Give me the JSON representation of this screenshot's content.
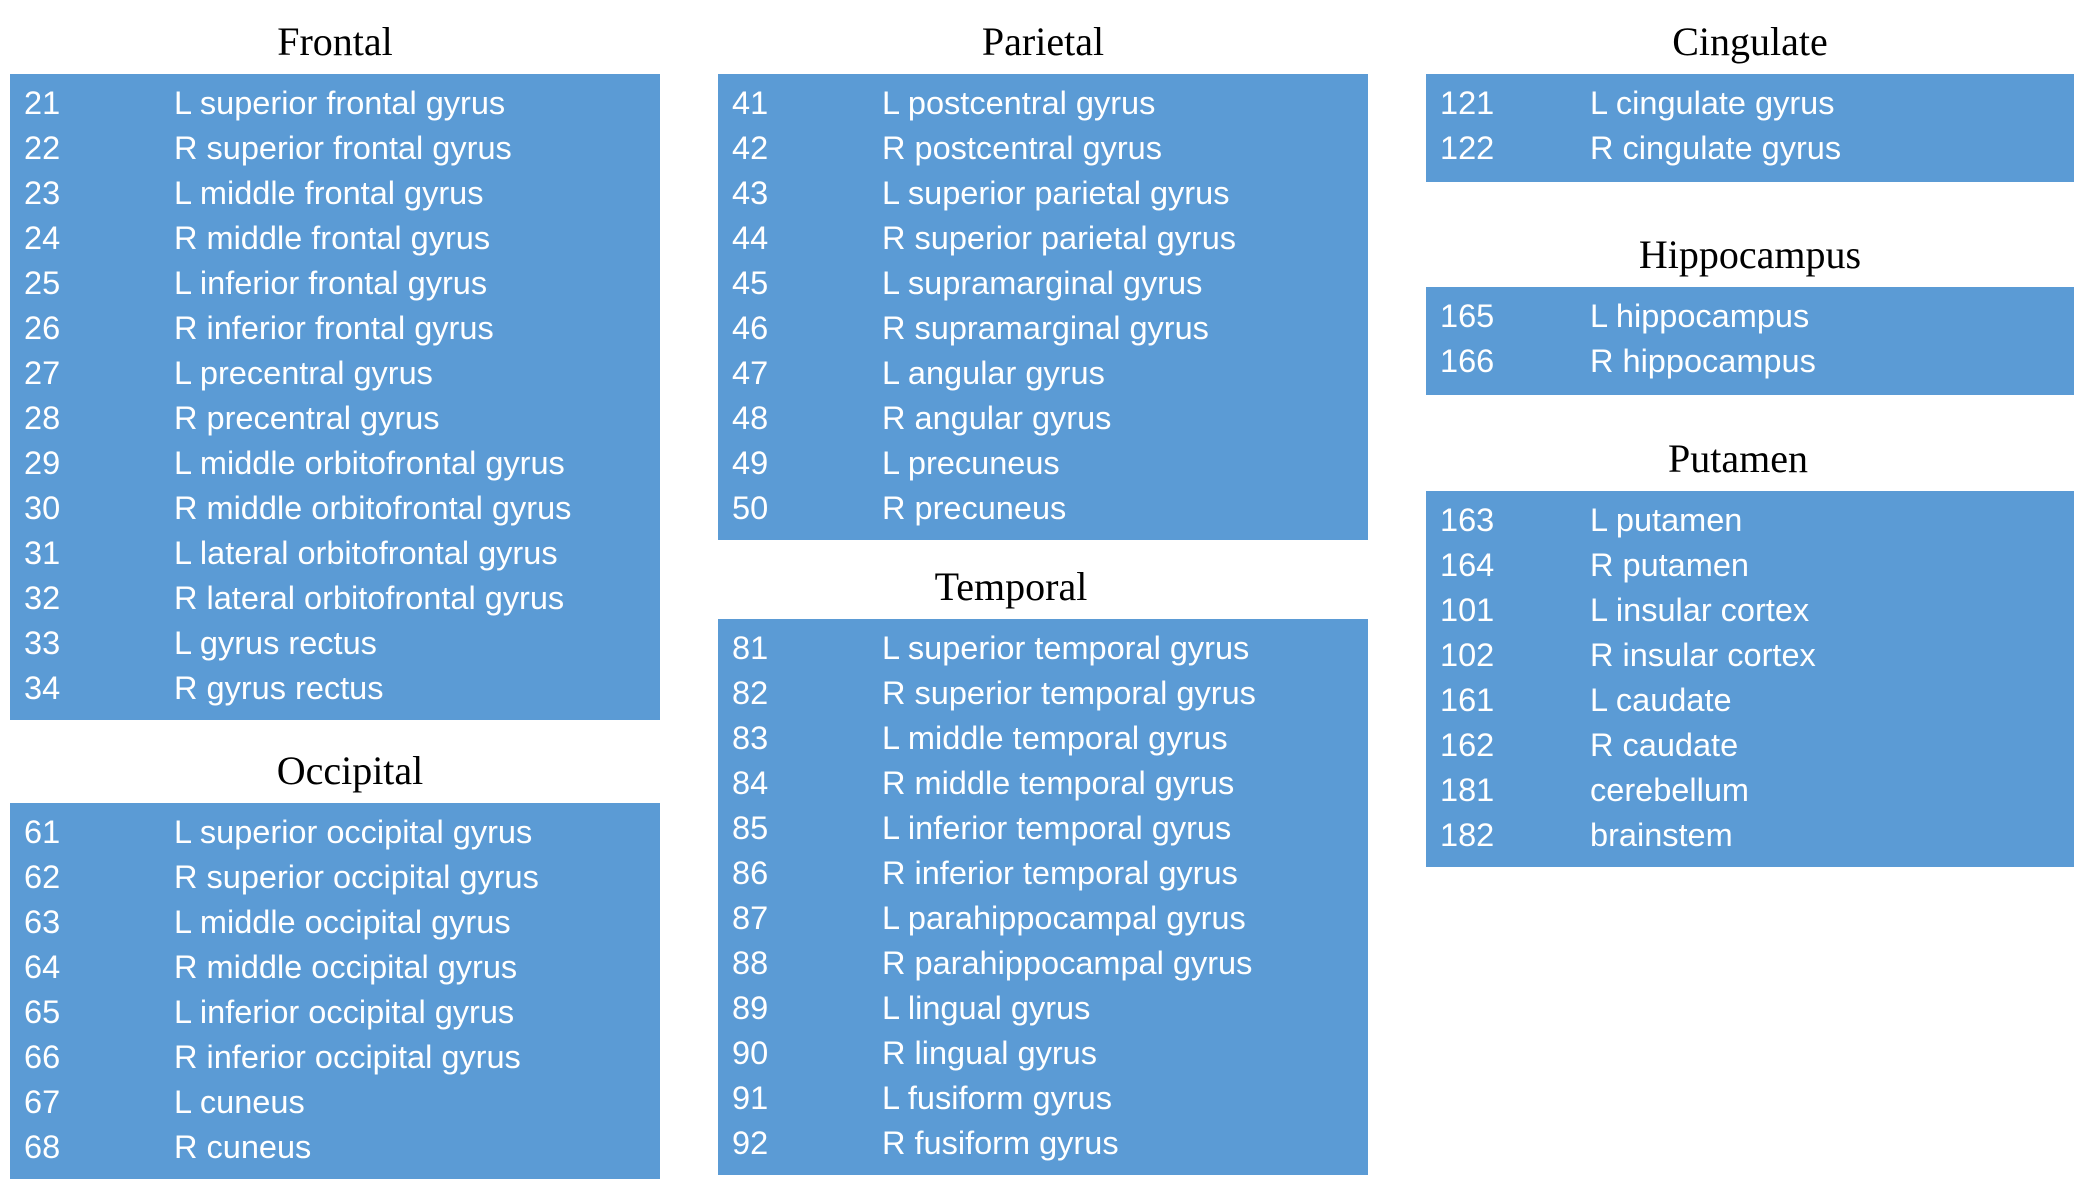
{
  "groups": [
    {
      "id": "frontal",
      "title": "Frontal",
      "rows": [
        {
          "code": "21",
          "name": "L superior frontal gyrus"
        },
        {
          "code": "22",
          "name": "R superior frontal gyrus"
        },
        {
          "code": "23",
          "name": "L middle frontal gyrus"
        },
        {
          "code": "24",
          "name": "R middle frontal gyrus"
        },
        {
          "code": "25",
          "name": "L inferior frontal gyrus"
        },
        {
          "code": "26",
          "name": "R inferior frontal gyrus"
        },
        {
          "code": "27",
          "name": "L precentral gyrus"
        },
        {
          "code": "28",
          "name": "R precentral gyrus"
        },
        {
          "code": "29",
          "name": "L middle orbitofrontal gyrus"
        },
        {
          "code": "30",
          "name": "R middle orbitofrontal gyrus"
        },
        {
          "code": "31",
          "name": "L lateral orbitofrontal gyrus"
        },
        {
          "code": "32",
          "name": "R lateral orbitofrontal gyrus"
        },
        {
          "code": "33",
          "name": "L gyrus rectus"
        },
        {
          "code": "34",
          "name": "R gyrus rectus"
        }
      ]
    },
    {
      "id": "occipital",
      "title": "Occipital",
      "rows": [
        {
          "code": "61",
          "name": "L superior occipital gyrus"
        },
        {
          "code": "62",
          "name": "R superior occipital gyrus"
        },
        {
          "code": "63",
          "name": "L middle occipital gyrus"
        },
        {
          "code": "64",
          "name": "R middle occipital gyrus"
        },
        {
          "code": "65",
          "name": "L inferior occipital gyrus"
        },
        {
          "code": "66",
          "name": "R inferior occipital gyrus"
        },
        {
          "code": "67",
          "name": "L cuneus"
        },
        {
          "code": "68",
          "name": "R cuneus"
        }
      ]
    },
    {
      "id": "parietal",
      "title": "Parietal",
      "rows": [
        {
          "code": "41",
          "name": "L postcentral gyrus"
        },
        {
          "code": "42",
          "name": "R postcentral gyrus"
        },
        {
          "code": "43",
          "name": "L superior parietal gyrus"
        },
        {
          "code": "44",
          "name": "R superior parietal gyrus"
        },
        {
          "code": "45",
          "name": "L supramarginal gyrus"
        },
        {
          "code": "46",
          "name": "R supramarginal gyrus"
        },
        {
          "code": "47",
          "name": "L angular gyrus"
        },
        {
          "code": "48",
          "name": "R angular gyrus"
        },
        {
          "code": "49",
          "name": "L precuneus"
        },
        {
          "code": "50",
          "name": "R precuneus"
        }
      ]
    },
    {
      "id": "temporal",
      "title": "Temporal",
      "rows": [
        {
          "code": "81",
          "name": "L superior temporal gyrus"
        },
        {
          "code": "82",
          "name": "R superior temporal gyrus"
        },
        {
          "code": "83",
          "name": "L middle temporal gyrus"
        },
        {
          "code": "84",
          "name": "R middle temporal gyrus"
        },
        {
          "code": "85",
          "name": "L inferior temporal gyrus"
        },
        {
          "code": "86",
          "name": "R inferior temporal gyrus"
        },
        {
          "code": "87",
          "name": "L parahippocampal gyrus"
        },
        {
          "code": "88",
          "name": "R parahippocampal gyrus"
        },
        {
          "code": "89",
          "name": "L lingual gyrus"
        },
        {
          "code": "90",
          "name": "R lingual gyrus"
        },
        {
          "code": "91",
          "name": "L fusiform gyrus"
        },
        {
          "code": "92",
          "name": "R fusiform gyrus"
        }
      ]
    },
    {
      "id": "cingulate",
      "title": "Cingulate",
      "rows": [
        {
          "code": "121",
          "name": "L cingulate gyrus"
        },
        {
          "code": "122",
          "name": "R cingulate gyrus"
        }
      ]
    },
    {
      "id": "hippocampus",
      "title": "Hippocampus",
      "rows": [
        {
          "code": "165",
          "name": "L hippocampus"
        },
        {
          "code": "166",
          "name": "R hippocampus"
        }
      ]
    },
    {
      "id": "putamen",
      "title": "Putamen",
      "rows": [
        {
          "code": "163",
          "name": "L putamen"
        },
        {
          "code": "164",
          "name": "R putamen"
        },
        {
          "code": "101",
          "name": "L insular cortex"
        },
        {
          "code": "102",
          "name": "R insular cortex"
        },
        {
          "code": "161",
          "name": "L caudate"
        },
        {
          "code": "162",
          "name": "R caudate"
        },
        {
          "code": "181",
          "name": "cerebellum"
        },
        {
          "code": "182",
          "name": "brainstem"
        }
      ]
    }
  ],
  "colors": {
    "box_fill": "#5b9bd5",
    "box_text": "#ffffff",
    "title_text": "#000000"
  }
}
